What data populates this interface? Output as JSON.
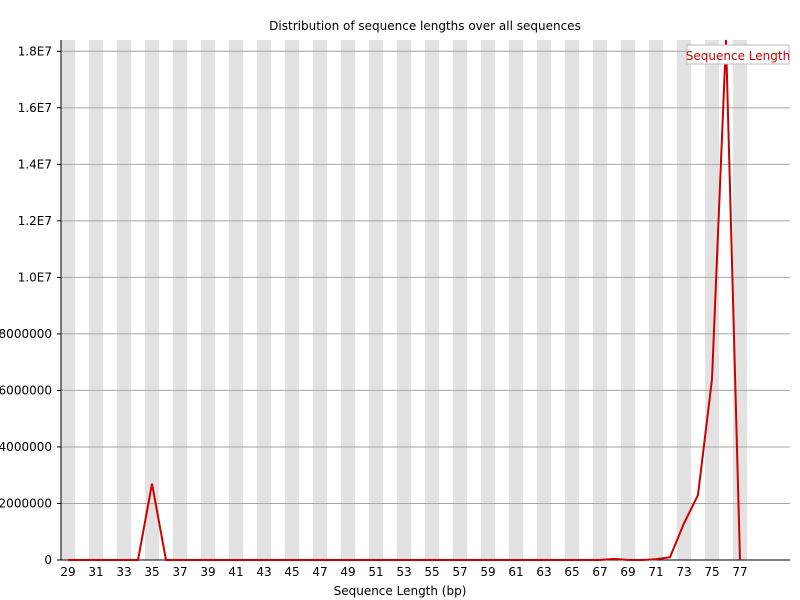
{
  "chart_data": {
    "type": "line",
    "title": "Distribution of sequence lengths over all sequences",
    "xlabel": "Sequence Length (bp)",
    "ylabel": "",
    "x": [
      29,
      30,
      31,
      32,
      33,
      34,
      35,
      36,
      37,
      38,
      39,
      40,
      41,
      42,
      43,
      44,
      45,
      46,
      47,
      48,
      49,
      50,
      51,
      52,
      53,
      54,
      55,
      56,
      57,
      58,
      59,
      60,
      61,
      62,
      63,
      64,
      65,
      66,
      67,
      68,
      69,
      70,
      71,
      72,
      73,
      74,
      75,
      76,
      77
    ],
    "series": [
      {
        "name": "Sequence Length",
        "color": "#cc0000",
        "values": [
          0,
          0,
          0,
          0,
          0,
          0,
          2700000,
          0,
          0,
          0,
          0,
          0,
          0,
          0,
          0,
          0,
          0,
          0,
          0,
          0,
          0,
          0,
          0,
          0,
          0,
          0,
          0,
          0,
          0,
          0,
          0,
          0,
          0,
          0,
          0,
          0,
          0,
          0,
          0,
          40000,
          0,
          0,
          30000,
          100000,
          1300000,
          2300000,
          6400000,
          18400000,
          0
        ]
      }
    ],
    "x_tick_labels": [
      "29",
      "31",
      "33",
      "35",
      "37",
      "39",
      "41",
      "43",
      "45",
      "47",
      "49",
      "51",
      "53",
      "55",
      "57",
      "59",
      "61",
      "63",
      "65",
      "67",
      "69",
      "71",
      "73",
      "75",
      "77"
    ],
    "y_tick_labels": [
      "0",
      "2000000",
      "4000000",
      "6000000",
      "8000000",
      "1.0E7",
      "1.2E7",
      "1.4E7",
      "1.6E7",
      "1.8E7"
    ],
    "y_tick_values": [
      0,
      2000000,
      4000000,
      6000000,
      8000000,
      10000000,
      12000000,
      14000000,
      16000000,
      18000000
    ],
    "xlim": [
      29,
      77
    ],
    "ylim": [
      0,
      18400000
    ],
    "grid": true,
    "legend_position": "top-right"
  }
}
